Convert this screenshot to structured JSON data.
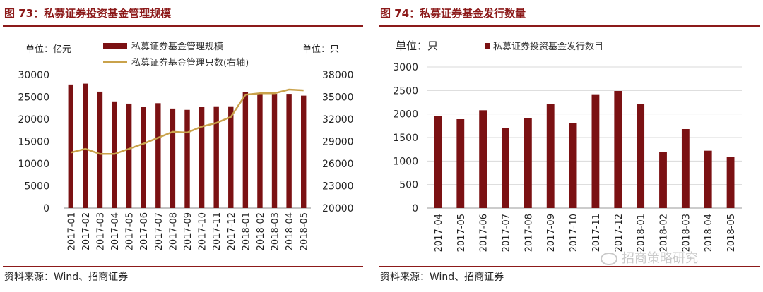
{
  "left": {
    "figure_title": "图 73：私募证券投资基金管理规模",
    "source": "资料来源：Wind、招商证券"
  },
  "right": {
    "figure_title": "图 74：私募证券基金发行数量",
    "source": "资料来源：Wind、招商证券"
  },
  "watermark": "招商策略研究",
  "colors": {
    "bar": "#7b1113",
    "line": "#c9a24b",
    "accent": "#8c1a1a"
  },
  "chart_data": [
    {
      "type": "bar",
      "title": "",
      "categories": [
        "2017-01",
        "2017-02",
        "2017-03",
        "2017-04",
        "2017-05",
        "2017-06",
        "2017-07",
        "2017-08",
        "2017-09",
        "2017-10",
        "2017-11",
        "2017-12",
        "2018-01",
        "2018-02",
        "2018-03",
        "2018-04",
        "2018-05"
      ],
      "series": [
        {
          "name": "私募证券基金管理规模",
          "type": "bar",
          "axis": "left",
          "values": [
            27800,
            28000,
            26200,
            24000,
            23500,
            22800,
            23600,
            22400,
            22100,
            22800,
            22900,
            22900,
            26100,
            25800,
            25700,
            25700,
            25300
          ]
        },
        {
          "name": "私募证券基金管理只数(右轴)",
          "type": "line",
          "axis": "right",
          "values": [
            27500,
            28000,
            27300,
            27300,
            28000,
            28700,
            29500,
            30300,
            30200,
            31000,
            31500,
            32300,
            35300,
            35500,
            35500,
            36000,
            35900
          ]
        }
      ],
      "ylabel": "单位：亿元",
      "y2label": "单位：只",
      "ylim": [
        0,
        30000
      ],
      "yticks": [
        0,
        5000,
        10000,
        15000,
        20000,
        25000,
        30000
      ],
      "y2lim": [
        20000,
        38000
      ],
      "y2ticks": [
        20000,
        23000,
        26000,
        29000,
        32000,
        35000,
        38000
      ],
      "grid": false,
      "legend": "top"
    },
    {
      "type": "bar",
      "title": "",
      "categories": [
        "2017-04",
        "2017-05",
        "2017-06",
        "2017-07",
        "2017-08",
        "2017-09",
        "2017-10",
        "2017-11",
        "2017-12",
        "2018-01",
        "2018-02",
        "2018-03",
        "2018-04",
        "2018-05"
      ],
      "series": [
        {
          "name": "私募证券投资基金发行数目",
          "values": [
            1950,
            1890,
            2080,
            1710,
            1910,
            2220,
            1810,
            2420,
            2490,
            2210,
            1190,
            1680,
            1220,
            1080
          ]
        }
      ],
      "ylabel": "单位：只",
      "ylim": [
        0,
        3000
      ],
      "yticks": [
        0,
        500,
        1000,
        1500,
        2000,
        2500,
        3000
      ],
      "grid": true,
      "legend": "top"
    }
  ]
}
